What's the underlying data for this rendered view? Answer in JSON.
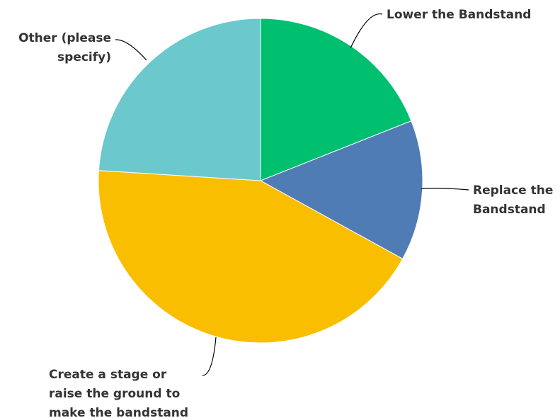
{
  "chart_data": {
    "type": "pie",
    "categories": [
      "Lower the Bandstand",
      "Replace the Bandstand",
      "Create a stage or raise the ground to make the bandstand",
      "Other (please specify)"
    ],
    "values": [
      19,
      14,
      43,
      24
    ],
    "colors": [
      "#00bf6f",
      "#507cb6",
      "#f9be00",
      "#6bc8cd"
    ],
    "label_lines": [
      [
        "Lower the Bandstand"
      ],
      [
        "Replace the",
        "Bandstand"
      ],
      [
        "Create a stage or",
        "raise the ground to",
        "make the bandstand"
      ],
      [
        "Other (please",
        "specify)"
      ]
    ],
    "title": "",
    "legend": "none"
  }
}
